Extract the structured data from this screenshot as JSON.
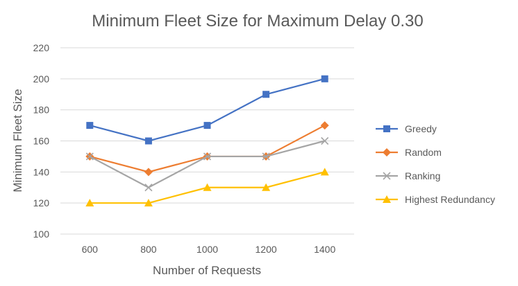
{
  "chart_data": {
    "type": "line",
    "title": "Minimum Fleet Size for Maximum Delay 0.30",
    "xlabel": "Number of Requests",
    "ylabel": "Minimum Fleet Size",
    "categories": [
      "600",
      "800",
      "1000",
      "1200",
      "1400"
    ],
    "ylim": [
      100,
      220
    ],
    "yticks": [
      100,
      120,
      140,
      160,
      180,
      200,
      220
    ],
    "grid": true,
    "legend_position": "right",
    "series": [
      {
        "name": "Greedy",
        "color": "#4472c4",
        "marker": "square",
        "values": [
          170,
          160,
          170,
          190,
          200
        ]
      },
      {
        "name": "Random",
        "color": "#ed7d31",
        "marker": "diamond",
        "values": [
          150,
          140,
          150,
          150,
          170
        ]
      },
      {
        "name": "Ranking",
        "color": "#a5a5a5",
        "marker": "x",
        "values": [
          150,
          130,
          150,
          150,
          160
        ]
      },
      {
        "name": "Highest Redundancy",
        "color": "#ffc000",
        "marker": "triangle",
        "values": [
          120,
          120,
          130,
          130,
          140
        ]
      }
    ]
  }
}
